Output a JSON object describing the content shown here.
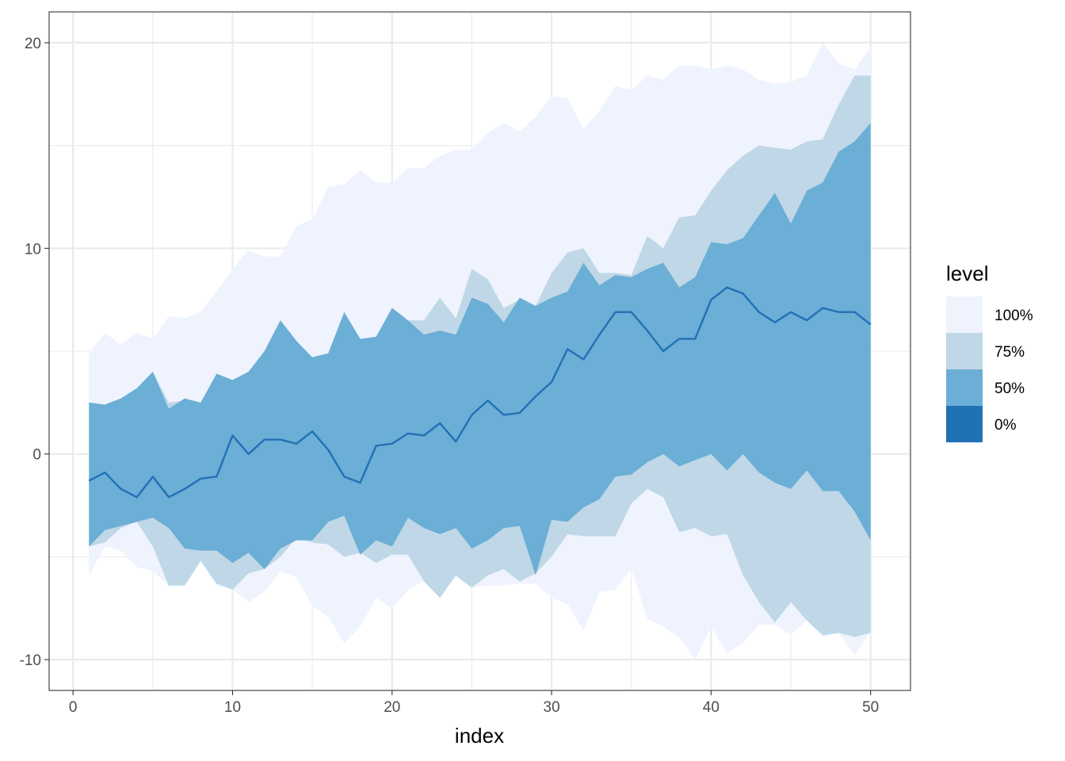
{
  "chart_data": {
    "type": "area",
    "xlabel": "index",
    "ylabel": "",
    "xlim": [
      -1.5,
      52.5
    ],
    "ylim": [
      -11.5,
      21.5
    ],
    "x_ticks": [
      0,
      10,
      20,
      30,
      40,
      50
    ],
    "y_ticks": [
      -10,
      0,
      10,
      20
    ],
    "x_tick_labels": [
      "0",
      "10",
      "20",
      "30",
      "40",
      "50"
    ],
    "y_tick_labels": [
      "-10",
      "0",
      "10",
      "20"
    ],
    "grid": true,
    "legend_position": "right",
    "legend": {
      "title": "level",
      "entries": [
        {
          "label": "100%",
          "color": "#eef3fe"
        },
        {
          "label": "75%",
          "color": "#bfd7e6"
        },
        {
          "label": "50%",
          "color": "#6baed6"
        },
        {
          "label": "0%",
          "color": "#2171b5"
        }
      ]
    },
    "x": [
      1,
      2,
      3,
      4,
      5,
      6,
      7,
      8,
      9,
      10,
      11,
      12,
      13,
      14,
      15,
      16,
      17,
      18,
      19,
      20,
      21,
      22,
      23,
      24,
      25,
      26,
      27,
      28,
      29,
      30,
      31,
      32,
      33,
      34,
      35,
      36,
      37,
      38,
      39,
      40,
      41,
      42,
      43,
      44,
      45,
      46,
      47,
      48,
      49,
      50
    ],
    "bands": [
      {
        "level": "100%",
        "upper": [
          4.9,
          5.9,
          5.3,
          5.9,
          5.6,
          6.7,
          6.6,
          6.9,
          7.9,
          9.0,
          9.9,
          9.6,
          9.6,
          11.1,
          11.4,
          13.0,
          13.1,
          13.8,
          13.2,
          13.2,
          13.9,
          13.9,
          14.5,
          14.8,
          14.8,
          15.6,
          16.1,
          15.7,
          16.4,
          17.4,
          17.3,
          15.8,
          16.7,
          17.9,
          17.7,
          18.4,
          18.2,
          18.9,
          18.9,
          18.7,
          18.9,
          18.7,
          18.2,
          18.0,
          18.1,
          18.4,
          20.0,
          19.0,
          18.7,
          19.8
        ],
        "lower": [
          -5.9,
          -4.5,
          -4.7,
          -5.5,
          -5.7,
          -6.4,
          -6.4,
          -5.2,
          -6.4,
          -6.6,
          -7.2,
          -6.7,
          -5.7,
          -6.0,
          -7.4,
          -7.9,
          -9.2,
          -8.4,
          -7.0,
          -7.5,
          -6.6,
          -6.2,
          -6.8,
          -6.0,
          -6.5,
          -6.4,
          -6.4,
          -6.3,
          -6.3,
          -7.0,
          -7.3,
          -8.6,
          -6.7,
          -6.6,
          -5.6,
          -8.0,
          -8.4,
          -8.9,
          -10.0,
          -8.4,
          -9.7,
          -9.2,
          -8.3,
          -8.3,
          -8.8,
          -8.1,
          -8.9,
          -8.7,
          -9.8,
          -8.6
        ]
      },
      {
        "level": "75%",
        "upper": [
          2.5,
          2.4,
          2.7,
          3.2,
          4.0,
          2.5,
          2.6,
          2.5,
          3.9,
          3.6,
          4.0,
          5.0,
          6.5,
          5.5,
          4.7,
          4.9,
          6.9,
          5.6,
          5.7,
          7.1,
          6.5,
          6.5,
          7.6,
          6.6,
          9.0,
          8.5,
          7.1,
          7.5,
          7.2,
          8.8,
          9.8,
          10.0,
          8.8,
          8.8,
          8.7,
          10.6,
          10.0,
          11.5,
          11.6,
          12.8,
          13.8,
          14.5,
          15.0,
          14.9,
          14.8,
          15.2,
          15.3,
          17.0,
          18.4,
          18.4
        ],
        "lower": [
          -4.5,
          -4.3,
          -3.6,
          -3.3,
          -4.5,
          -6.4,
          -6.4,
          -5.2,
          -6.3,
          -6.6,
          -5.8,
          -5.6,
          -5.0,
          -4.1,
          -4.3,
          -4.4,
          -5.0,
          -4.8,
          -5.3,
          -4.9,
          -4.9,
          -6.2,
          -7.0,
          -5.9,
          -6.5,
          -5.9,
          -5.6,
          -6.2,
          -5.8,
          -5.0,
          -3.9,
          -4.0,
          -4.0,
          -4.0,
          -2.4,
          -1.7,
          -2.1,
          -3.8,
          -3.6,
          -4.0,
          -3.9,
          -5.9,
          -7.2,
          -8.2,
          -7.2,
          -8.1,
          -8.8,
          -8.7,
          -8.9,
          -8.7
        ]
      },
      {
        "level": "50%",
        "upper": [
          2.5,
          2.4,
          2.7,
          3.2,
          4.0,
          2.2,
          2.7,
          2.5,
          3.9,
          3.6,
          4.0,
          5.0,
          6.5,
          5.5,
          4.7,
          4.9,
          6.9,
          5.6,
          5.7,
          7.1,
          6.5,
          5.8,
          6.0,
          5.8,
          7.6,
          7.3,
          6.4,
          7.6,
          7.2,
          7.6,
          7.9,
          9.3,
          8.2,
          8.7,
          8.6,
          9.0,
          9.3,
          8.1,
          8.6,
          10.3,
          10.2,
          10.5,
          11.6,
          12.7,
          11.2,
          12.8,
          13.2,
          14.7,
          15.2,
          16.1
        ],
        "lower": [
          -4.5,
          -3.7,
          -3.5,
          -3.3,
          -3.1,
          -3.6,
          -4.6,
          -4.7,
          -4.7,
          -5.3,
          -4.8,
          -5.6,
          -4.6,
          -4.2,
          -4.2,
          -3.3,
          -3.0,
          -4.9,
          -4.2,
          -4.5,
          -3.1,
          -3.6,
          -3.9,
          -3.6,
          -4.6,
          -4.2,
          -3.6,
          -3.5,
          -5.9,
          -3.2,
          -3.3,
          -2.6,
          -2.2,
          -1.1,
          -1.0,
          -0.4,
          0.0,
          -0.6,
          -0.3,
          0.0,
          -0.8,
          0.0,
          -0.9,
          -1.4,
          -1.7,
          -0.8,
          -1.8,
          -1.8,
          -2.8,
          -4.2
        ]
      }
    ],
    "series": [
      {
        "level": "0%",
        "values": [
          -1.3,
          -0.9,
          -1.7,
          -2.1,
          -1.1,
          -2.1,
          -1.7,
          -1.2,
          -1.1,
          0.9,
          0.0,
          0.7,
          0.7,
          0.5,
          1.1,
          0.2,
          -1.1,
          -1.4,
          0.4,
          0.5,
          1.0,
          0.9,
          1.5,
          0.6,
          1.9,
          2.6,
          1.9,
          2.0,
          2.8,
          3.5,
          5.1,
          4.6,
          5.8,
          6.9,
          6.9,
          6.0,
          5.0,
          5.6,
          5.6,
          7.5,
          8.1,
          7.8,
          6.9,
          6.4,
          6.9,
          6.5,
          7.1,
          6.9,
          6.9,
          6.3
        ]
      }
    ]
  }
}
